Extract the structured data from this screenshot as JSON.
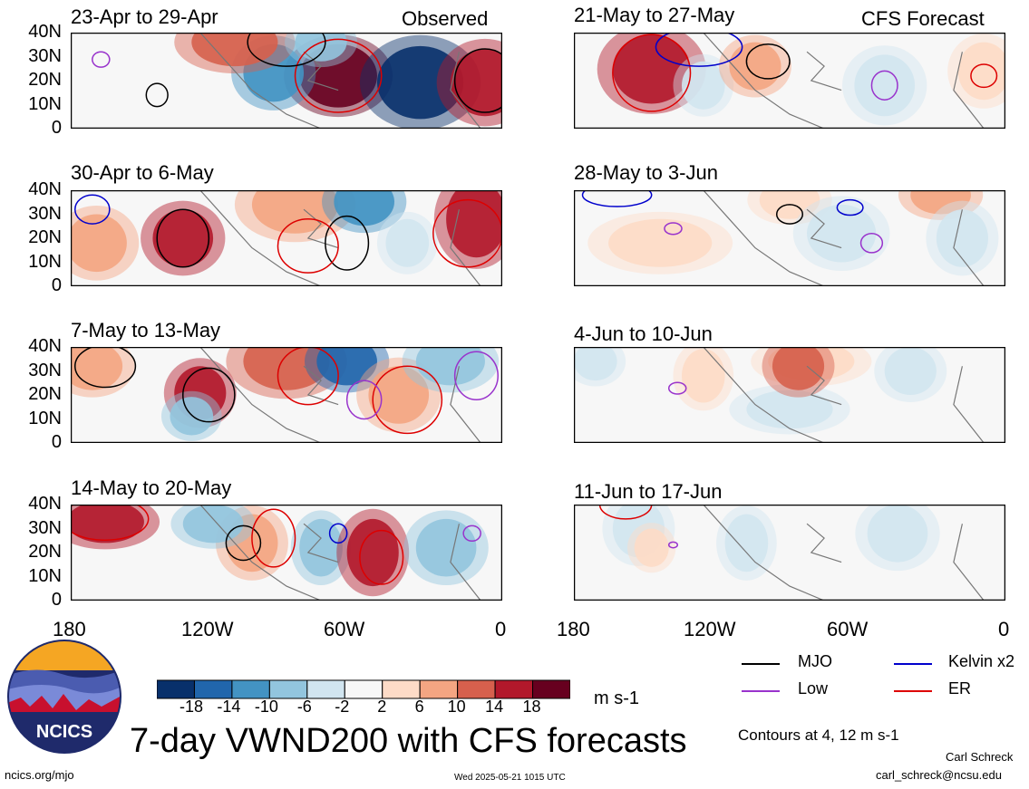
{
  "chart_data": {
    "type": "heatmap",
    "title": "7-day VWND200 with CFS forecasts",
    "colorbar": {
      "unit": "m s-1",
      "tick_labels": [
        "-18",
        "-14",
        "-10",
        "-6",
        "-2",
        "2",
        "6",
        "10",
        "14",
        "18"
      ],
      "colors": [
        "#08306b",
        "#2166ac",
        "#4393c3",
        "#92c5de",
        "#d1e5f0",
        "#f7f7f7",
        "#fddbc7",
        "#f4a582",
        "#d6604d",
        "#b2182b",
        "#67001f"
      ]
    },
    "columns": [
      "Observed",
      "CFS Forecast"
    ],
    "x_ticks": [
      "180",
      "120W",
      "60W",
      "0"
    ],
    "y_ticks": [
      "40N",
      "30N",
      "20N",
      "10N",
      "0"
    ],
    "panels": [
      {
        "period": "23-Apr to 29-Apr"
      },
      {
        "period": "21-May to 27-May"
      },
      {
        "period": "30-Apr to 6-May"
      },
      {
        "period": "28-May to 3-Jun"
      },
      {
        "period": "7-May to 13-May"
      },
      {
        "period": "4-Jun to 10-Jun"
      },
      {
        "period": "14-May to 20-May"
      },
      {
        "period": "11-Jun to 17-Jun"
      }
    ],
    "legend": [
      {
        "name": "MJO",
        "color": "#000000"
      },
      {
        "name": "Kelvin x2",
        "color": "#0000cc"
      },
      {
        "name": "Low",
        "color": "#9933cc"
      },
      {
        "name": "ER",
        "color": "#dd0000"
      }
    ],
    "contour_note": "Contours at 4, 12 m s-1"
  },
  "footer": {
    "left": "ncics.org/mjo",
    "center": "Wed 2025-05-21 1015 UTC",
    "author": "Carl Schreck",
    "email": "carl_schreck@ncsu.edu",
    "logo_text": "NCICS"
  }
}
